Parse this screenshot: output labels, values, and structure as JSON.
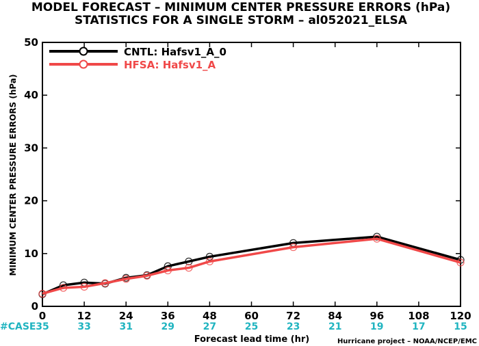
{
  "chart_data": {
    "type": "line",
    "title": "MODEL FORECAST – MINIMUM CENTER PRESSURE ERRORS (hPa)",
    "subtitle": "STATISTICS FOR A SINGLE STORM – al052021_ELSA",
    "xlabel": "Forecast lead time (hr)",
    "ylabel": "MINIMUM CENTER PRESSURE ERRORS (hPa)",
    "xlim": [
      0,
      120
    ],
    "ylim": [
      0,
      50
    ],
    "xticks": [
      0,
      12,
      24,
      36,
      48,
      60,
      72,
      84,
      96,
      108,
      120
    ],
    "yticks": [
      0,
      10,
      20,
      30,
      40,
      50
    ],
    "legend_position": "top-left",
    "case_label": "#CASE",
    "case_x": [
      0,
      12,
      24,
      36,
      48,
      60,
      72,
      84,
      96,
      108,
      120
    ],
    "case_counts": [
      "35",
      "33",
      "31",
      "29",
      "27",
      "25",
      "23",
      "21",
      "19",
      "17",
      "15"
    ],
    "credit": "Hurricane project – NOAA/NCEP/EMC",
    "series": [
      {
        "name": "CNTL: Hafsv1_A_0",
        "color": "#000000",
        "x": [
          0,
          6,
          12,
          18,
          24,
          30,
          36,
          42,
          48,
          72,
          96,
          120
        ],
        "y": [
          2.3,
          4.0,
          4.5,
          4.3,
          5.4,
          5.9,
          7.6,
          8.5,
          9.4,
          12.0,
          13.2,
          8.8
        ]
      },
      {
        "name": "HFSA: Hafsv1_A",
        "color": "#f04848",
        "x": [
          0,
          6,
          12,
          18,
          24,
          30,
          36,
          42,
          48,
          72,
          96,
          120
        ],
        "y": [
          2.4,
          3.5,
          3.7,
          4.4,
          5.2,
          5.8,
          6.8,
          7.3,
          8.5,
          11.2,
          12.8,
          8.3
        ]
      }
    ]
  }
}
